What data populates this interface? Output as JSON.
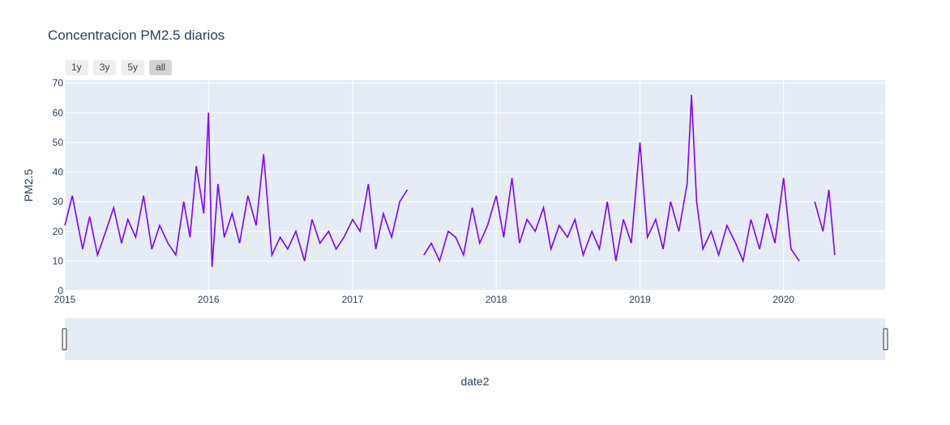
{
  "chart_data": {
    "type": "line",
    "title": "Concentracion PM2.5 diarios",
    "xlabel": "date2",
    "ylabel": "PM2.5",
    "xlim": [
      "2015-01-01",
      "2020-09-15"
    ],
    "ylim": [
      0,
      71
    ],
    "x_ticks": [
      "2015",
      "2016",
      "2017",
      "2018",
      "2019",
      "2020"
    ],
    "y_ticks": [
      0,
      10,
      20,
      30,
      40,
      50,
      60,
      70
    ],
    "grid": true,
    "line_color": "#7f00ff",
    "plot_bg": "#e5ecf6",
    "range_buttons": [
      "1y",
      "3y",
      "5y",
      "all"
    ],
    "active_range_button": "all",
    "range_slider": true,
    "series": [
      {
        "x": [
          "2015-01-01",
          "2015-01-20",
          "2015-02-15",
          "2015-03-05",
          "2015-03-25",
          "2015-04-15",
          "2015-05-05",
          "2015-05-25",
          "2015-06-10",
          "2015-06-30",
          "2015-07-20",
          "2015-08-10",
          "2015-08-30",
          "2015-09-20",
          "2015-10-10",
          "2015-10-30",
          "2015-11-15",
          "2015-12-01",
          "2015-12-20",
          "2016-01-01",
          "2016-01-10",
          "2016-01-25",
          "2016-02-10",
          "2016-03-01",
          "2016-03-20",
          "2016-04-10",
          "2016-05-01",
          "2016-05-20",
          "2016-06-10",
          "2016-07-01",
          "2016-07-20",
          "2016-08-10",
          "2016-09-01",
          "2016-09-20",
          "2016-10-10",
          "2016-11-01",
          "2016-11-20",
          "2016-12-10",
          "2017-01-01",
          "2017-01-20",
          "2017-02-10",
          "2017-03-01",
          "2017-03-20",
          "2017-04-10",
          "2017-05-01",
          "2017-05-20",
          "2017-06-10",
          "2017-07-01",
          "2017-07-20",
          "2017-08-10",
          "2017-09-01",
          "2017-09-20",
          "2017-10-10",
          "2017-11-01",
          "2017-11-20",
          "2017-12-10",
          "2018-01-01",
          "2018-01-20",
          "2018-02-10",
          "2018-03-01",
          "2018-03-20",
          "2018-04-10",
          "2018-05-01",
          "2018-05-20",
          "2018-06-10",
          "2018-07-01",
          "2018-07-20",
          "2018-08-10",
          "2018-09-01",
          "2018-09-20",
          "2018-10-10",
          "2018-11-01",
          "2018-11-20",
          "2018-12-10",
          "2019-01-01",
          "2019-01-20",
          "2019-02-10",
          "2019-03-01",
          "2019-03-20",
          "2019-04-10",
          "2019-05-01",
          "2019-05-12",
          "2019-05-25",
          "2019-06-10",
          "2019-07-01",
          "2019-07-20",
          "2019-08-10",
          "2019-09-01",
          "2019-09-20",
          "2019-10-10",
          "2019-11-01",
          "2019-11-20",
          "2019-12-10",
          "2020-01-01",
          "2020-01-20",
          "2020-02-10",
          "2020-03-01",
          "2020-03-20",
          "2020-04-10",
          "2020-04-25",
          "2020-05-10"
        ],
        "y": [
          22,
          32,
          14,
          25,
          12,
          20,
          28,
          16,
          24,
          18,
          32,
          14,
          22,
          16,
          12,
          30,
          18,
          42,
          26,
          60,
          8,
          36,
          18,
          26,
          16,
          32,
          22,
          46,
          12,
          18,
          14,
          20,
          10,
          24,
          16,
          20,
          14,
          18,
          24,
          20,
          36,
          14,
          26,
          18,
          30,
          34,
          null,
          12,
          16,
          10,
          20,
          18,
          12,
          28,
          16,
          22,
          32,
          18,
          38,
          16,
          24,
          20,
          28,
          14,
          22,
          18,
          24,
          12,
          20,
          14,
          30,
          10,
          24,
          16,
          50,
          18,
          24,
          14,
          30,
          20,
          36,
          66,
          30,
          14,
          20,
          12,
          22,
          16,
          10,
          24,
          14,
          26,
          16,
          38,
          14,
          10,
          null,
          30,
          20,
          34,
          12
        ]
      }
    ]
  }
}
